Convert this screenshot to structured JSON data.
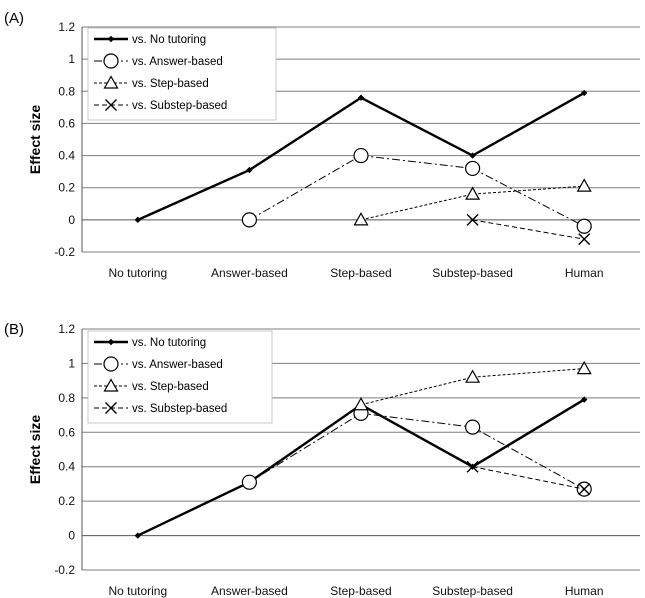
{
  "chart_data": [
    {
      "type": "line",
      "panel_label": "(A)",
      "ylabel": "Effect size",
      "xlabel": "",
      "ylim": [
        -0.2,
        1.2
      ],
      "y_ticks": [
        "-0.2",
        "0",
        "0.2",
        "0.4",
        "0.6",
        "0.8",
        "1",
        "1.2"
      ],
      "categories": [
        "No tutoring",
        "Answer-based",
        "Step-based",
        "Substep-based",
        "Human"
      ],
      "grid": "horizontal",
      "legend_position": "top-left",
      "series": [
        {
          "name": "vs. No tutoring",
          "values": [
            0,
            0.31,
            0.76,
            0.4,
            0.79
          ]
        },
        {
          "name": "vs. Answer-based",
          "values": [
            null,
            0,
            0.4,
            0.32,
            -0.04
          ]
        },
        {
          "name": "vs. Step-based",
          "values": [
            null,
            null,
            0,
            0.16,
            0.21
          ]
        },
        {
          "name": "vs. Substep-based",
          "values": [
            null,
            null,
            null,
            0,
            -0.12
          ]
        }
      ]
    },
    {
      "type": "line",
      "panel_label": "(B)",
      "ylabel": "Effect size",
      "xlabel": "",
      "ylim": [
        -0.2,
        1.2
      ],
      "y_ticks": [
        "-0.2",
        "0",
        "0.2",
        "0.4",
        "0.6",
        "0.8",
        "1",
        "1.2"
      ],
      "categories": [
        "No tutoring",
        "Answer-based",
        "Step-based",
        "Substep-based",
        "Human"
      ],
      "grid": "horizontal",
      "legend_position": "top-left",
      "series": [
        {
          "name": "vs. No tutoring",
          "values": [
            0,
            0.31,
            0.76,
            0.4,
            0.79
          ]
        },
        {
          "name": "vs. Answer-based",
          "values": [
            null,
            0.31,
            0.71,
            0.63,
            0.27
          ]
        },
        {
          "name": "vs. Step-based",
          "values": [
            null,
            null,
            0.76,
            0.92,
            0.97
          ]
        },
        {
          "name": "vs. Substep-based",
          "values": [
            null,
            null,
            null,
            0.4,
            0.27
          ]
        }
      ]
    }
  ],
  "series_styles": [
    {
      "marker": "diamond",
      "dash": "",
      "width": 2.4
    },
    {
      "marker": "circle",
      "dash": "8 3 2 3",
      "width": 1
    },
    {
      "marker": "triangle",
      "dash": "3 2",
      "width": 1
    },
    {
      "marker": "x",
      "dash": "5 3",
      "width": 1
    }
  ],
  "colors": {
    "line": "#000000",
    "grid": "#7f7f7f",
    "marker_fill": "#ffffff"
  }
}
